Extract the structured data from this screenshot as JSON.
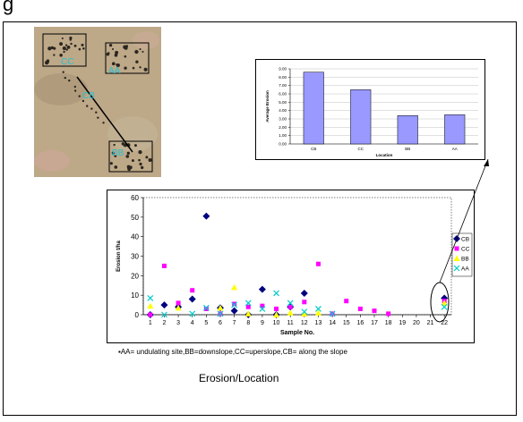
{
  "page": {
    "title": "g"
  },
  "photo": {
    "labels": [
      "CC",
      "AA",
      "CB",
      "BB"
    ],
    "colors": {
      "background": "#b09a7c",
      "label": "#27c0d0"
    }
  },
  "chart_data": [
    {
      "type": "bar",
      "categories": [
        "CB",
        "CC",
        "BB",
        "AA"
      ],
      "values": [
        8.6,
        6.5,
        3.4,
        3.5
      ],
      "xlabel": "Location",
      "ylabel": "Average Erosion",
      "ylim": [
        0,
        9
      ],
      "yticks": [
        "0.00",
        "1.00",
        "2.00",
        "3.00",
        "4.00",
        "5.00",
        "6.00",
        "7.00",
        "8.00",
        "9.00"
      ],
      "grid": true,
      "bar_color": "#9999ff"
    },
    {
      "type": "scatter",
      "x": [
        1,
        2,
        3,
        4,
        5,
        6,
        7,
        8,
        9,
        10,
        11,
        12,
        13,
        14,
        15,
        16,
        17,
        18,
        19,
        20,
        21,
        22
      ],
      "series": [
        {
          "name": "CB",
          "marker": "diamond",
          "color": "#000080",
          "values": [
            0,
            5,
            4,
            8,
            50.5,
            3.5,
            2,
            0,
            13,
            0,
            4,
            11,
            null,
            null,
            null,
            null,
            null,
            null,
            null,
            null,
            null,
            8.5
          ]
        },
        {
          "name": "CC",
          "marker": "square",
          "color": "#ff00ff",
          "values": [
            0,
            25,
            6,
            12.5,
            3,
            0.5,
            5.5,
            4,
            4.5,
            3,
            4,
            6.5,
            26,
            0.5,
            7,
            3,
            2,
            0.5,
            null,
            null,
            null,
            7
          ]
        },
        {
          "name": "BB",
          "marker": "triangle",
          "color": "#ffff00",
          "values": [
            4.5,
            null,
            3.5,
            null,
            null,
            3.5,
            14,
            0.5,
            null,
            0,
            1,
            0.5,
            1,
            null,
            null,
            null,
            null,
            null,
            null,
            null,
            null,
            6
          ]
        },
        {
          "name": "AA",
          "marker": "x",
          "color": "#00cccc",
          "values": [
            8.5,
            0,
            null,
            0.5,
            3.5,
            0.5,
            5,
            6,
            3,
            11,
            6,
            1.5,
            3,
            0.5,
            null,
            null,
            null,
            null,
            null,
            null,
            null,
            4
          ]
        }
      ],
      "xlabel": "Sample No.",
      "ylabel": "Erosion t/ha",
      "xlim": [
        0.5,
        22.5
      ],
      "ylim": [
        0,
        60
      ],
      "yticks": [
        0,
        10,
        20,
        30,
        40,
        50,
        60
      ],
      "grid": false,
      "legend": "right"
    }
  ],
  "footnote": "▪AA= undulating site,BB=downslope,CC=uperslope,CB= along the slope",
  "caption": "Erosion/Location"
}
